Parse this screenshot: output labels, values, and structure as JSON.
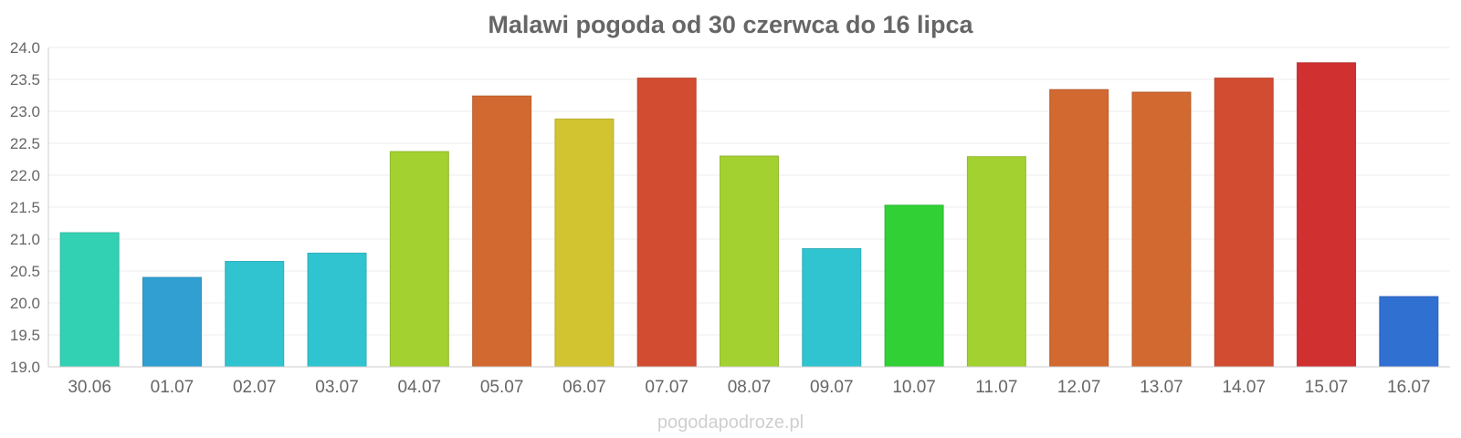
{
  "chart_data": {
    "type": "bar",
    "title": "Malawi pogoda od 30 czerwca do 16 lipca",
    "xlabel": "",
    "ylabel": "",
    "ylim": [
      19.0,
      24.0
    ],
    "yticks": [
      "19.0",
      "19.5",
      "20.0",
      "20.5",
      "21.0",
      "21.5",
      "22.0",
      "22.5",
      "23.0",
      "23.5",
      "24.0"
    ],
    "grid": true,
    "legend": "none",
    "categories": [
      "30.06",
      "01.07",
      "02.07",
      "03.07",
      "04.07",
      "05.07",
      "06.07",
      "07.07",
      "08.07",
      "09.07",
      "10.07",
      "11.07",
      "12.07",
      "13.07",
      "14.07",
      "15.07",
      "16.07"
    ],
    "values": [
      21.1,
      20.4,
      20.65,
      20.78,
      22.37,
      23.24,
      22.88,
      23.52,
      22.3,
      20.85,
      21.53,
      22.29,
      23.34,
      23.3,
      23.52,
      23.76,
      20.1
    ],
    "colors": [
      "#36dcbd",
      "#34a7dc",
      "#33cedc",
      "#33cedc",
      "#acdc33",
      "#dd6e33",
      "#dcce33",
      "#dd5034",
      "#acdc33",
      "#33cedc",
      "#34dc38",
      "#acdc33",
      "#dd6e33",
      "#dd6e33",
      "#dd5034",
      "#dc3334",
      "#3376dc"
    ]
  },
  "watermark": "pogodapodroze.pl"
}
